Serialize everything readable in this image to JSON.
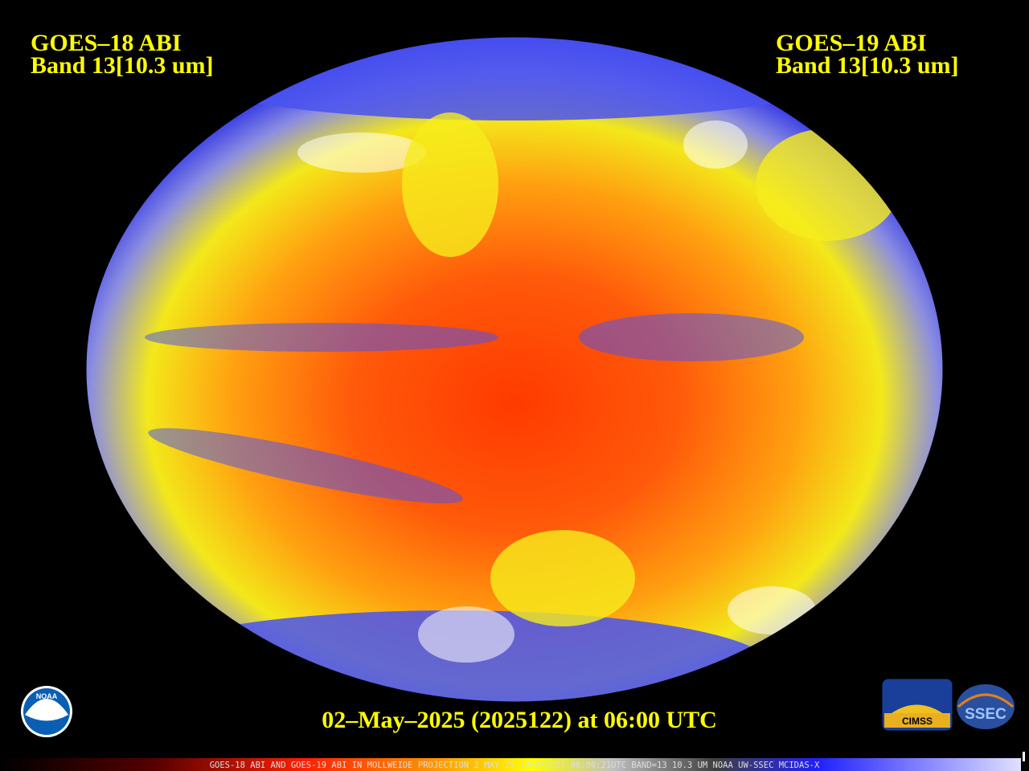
{
  "header": {
    "left": {
      "satellite": "GOES–18 ABI",
      "band": "Band 13[10.3 um]"
    },
    "right": {
      "satellite": "GOES–19 ABI",
      "band": "Band 13[10.3 um]"
    }
  },
  "timestamp": "02–May–2025 (2025122) at 06:00 UTC",
  "footer": "GOES-18 ABI AND GOES-19 ABI IN MOLLWEIDE PROJECTION 2 MAY 25 (2025122) 06:00:21UTC BAND=13 10.3 UM NOAA UW-SSEC MCIDAS-X",
  "logos": {
    "noaa": "NOAA",
    "cimss": "CIMSS",
    "ssec": "SSEC"
  }
}
